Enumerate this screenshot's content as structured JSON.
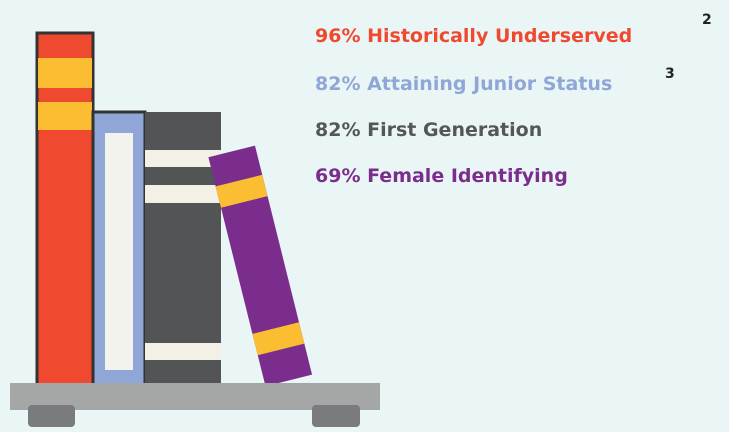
{
  "stats": [
    {
      "text": "96% Historically Underserved",
      "note": "2"
    },
    {
      "text": "82% Attaining Junior Status",
      "note": "3"
    },
    {
      "text": "82% First Generation"
    },
    {
      "text": "69% Female Identifying"
    }
  ]
}
